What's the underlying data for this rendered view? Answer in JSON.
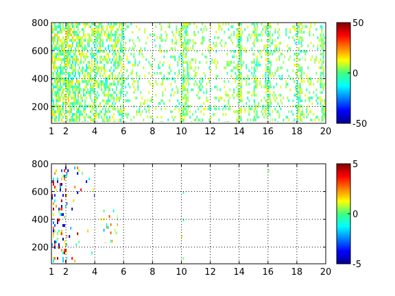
{
  "chart_data": [
    {
      "type": "heatmap",
      "title": "",
      "xlabel": "",
      "ylabel": "",
      "xlim": [
        1,
        20
      ],
      "ylim": [
        80,
        800
      ],
      "xticks": [
        "1",
        "2",
        "4",
        "6",
        "8",
        "10",
        "12",
        "14",
        "16",
        "18",
        "20"
      ],
      "yticks": [
        "200",
        "400",
        "600",
        "800"
      ],
      "grid": true,
      "colorbar": {
        "colormap": "jet",
        "limits": [
          -50,
          50
        ],
        "ticks": [
          "50",
          "0",
          "-50"
        ]
      },
      "density": "dense scattered values near 0 across all columns, densest for x between 1 and 6; sparse white (empty) gaps",
      "bands": [
        {
          "x": [
            1.0,
            3.0
          ],
          "y": [
            90,
            800
          ],
          "density": 0.68,
          "values": [
            -14,
            18
          ]
        },
        {
          "x": [
            3.0,
            6.0
          ],
          "y": [
            90,
            800
          ],
          "density": 0.5,
          "values": [
            -12,
            14
          ]
        },
        {
          "x": [
            6.0,
            20.0
          ],
          "y": [
            90,
            800
          ],
          "density": 0.18,
          "values": [
            -10,
            12
          ]
        },
        {
          "x": [
            10.0,
            10.5
          ],
          "y": [
            90,
            800
          ],
          "density": 0.55,
          "values": [
            -12,
            14
          ]
        },
        {
          "x": [
            13.8,
            14.2
          ],
          "y": [
            90,
            800
          ],
          "density": 0.5,
          "values": [
            -12,
            14
          ]
        },
        {
          "x": [
            15.0,
            15.3
          ],
          "y": [
            90,
            800
          ],
          "density": 0.45,
          "values": [
            -12,
            14
          ]
        },
        {
          "x": [
            15.8,
            16.2
          ],
          "y": [
            90,
            800
          ],
          "density": 0.5,
          "values": [
            -12,
            14
          ]
        },
        {
          "x": [
            18.0,
            18.4
          ],
          "y": [
            90,
            800
          ],
          "density": 0.5,
          "values": [
            -12,
            14
          ]
        },
        {
          "x": [
            19.6,
            19.9
          ],
          "y": [
            90,
            800
          ],
          "density": 0.45,
          "values": [
            -12,
            14
          ]
        }
      ]
    },
    {
      "type": "heatmap",
      "title": "",
      "xlabel": "",
      "ylabel": "",
      "xlim": [
        1,
        20
      ],
      "ylim": [
        80,
        800
      ],
      "xticks": [
        "1",
        "2",
        "4",
        "6",
        "8",
        "10",
        "12",
        "14",
        "16",
        "18",
        "20"
      ],
      "yticks": [
        "200",
        "400",
        "600",
        "800"
      ],
      "grid": true,
      "colorbar": {
        "colormap": "jet",
        "limits": [
          -5,
          5
        ],
        "ticks": [
          "5",
          "0",
          "-5"
        ]
      },
      "density": "mostly empty; sparse strong positive/negative values near x 1 to 3, a few near x 4 to 6 and isolated points near x 10, 16 and 18",
      "bands": [
        {
          "x": [
            1.0,
            2.1
          ],
          "y": [
            90,
            780
          ],
          "density": 0.22,
          "values": [
            -5,
            5
          ]
        },
        {
          "x": [
            2.1,
            3.0
          ],
          "y": [
            90,
            780
          ],
          "density": 0.08,
          "values": [
            -5,
            5
          ]
        },
        {
          "x": [
            3.0,
            4.0
          ],
          "y": [
            90,
            780
          ],
          "density": 0.03,
          "values": [
            -5,
            5
          ]
        },
        {
          "x": [
            4.4,
            5.6
          ],
          "y": [
            230,
            470
          ],
          "density": 0.12,
          "values": [
            -2,
            3
          ]
        },
        {
          "x": [
            10.0,
            10.2
          ],
          "y": [
            90,
            780
          ],
          "density": 0.12,
          "values": [
            -1,
            2
          ]
        },
        {
          "x": [
            16.0,
            16.1
          ],
          "y": [
            740,
            780
          ],
          "density": 0.3,
          "values": [
            0,
            1
          ]
        },
        {
          "x": [
            18.0,
            18.2
          ],
          "y": [
            380,
            620
          ],
          "density": 0.1,
          "values": [
            -1,
            1
          ]
        }
      ]
    }
  ]
}
